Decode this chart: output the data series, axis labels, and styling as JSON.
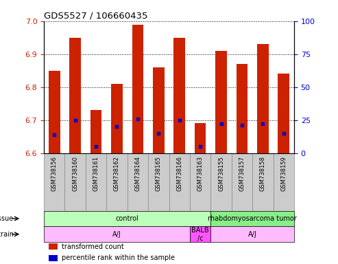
{
  "title": "GDS5527 / 106660435",
  "samples": [
    "GSM738156",
    "GSM738160",
    "GSM738161",
    "GSM738162",
    "GSM738164",
    "GSM738165",
    "GSM738166",
    "GSM738163",
    "GSM738155",
    "GSM738157",
    "GSM738158",
    "GSM738159"
  ],
  "bar_values": [
    6.85,
    6.95,
    6.73,
    6.81,
    6.99,
    6.86,
    6.95,
    6.69,
    6.91,
    6.87,
    6.93,
    6.84
  ],
  "percentile_values": [
    14,
    25,
    5,
    20,
    26,
    15,
    25,
    5,
    22,
    21,
    22,
    15
  ],
  "ylim_left": [
    6.6,
    7.0
  ],
  "ylim_right": [
    0,
    100
  ],
  "yticks_left": [
    6.6,
    6.7,
    6.8,
    6.9,
    7.0
  ],
  "yticks_right": [
    0,
    25,
    50,
    75,
    100
  ],
  "bar_color": "#cc2200",
  "bar_base": 6.6,
  "percentile_color": "#0000cc",
  "tissue_groups": [
    {
      "label": "control",
      "start": 0,
      "end": 7,
      "color": "#bbffbb"
    },
    {
      "label": "rhabdomyosarcoma tumor",
      "start": 8,
      "end": 11,
      "color": "#88ee88"
    }
  ],
  "strain_groups": [
    {
      "label": "A/J",
      "start": 0,
      "end": 6,
      "color": "#ffbbff"
    },
    {
      "label": "BALB\n/c",
      "start": 7,
      "end": 7,
      "color": "#ff55ff"
    },
    {
      "label": "A/J",
      "start": 8,
      "end": 11,
      "color": "#ffbbff"
    }
  ],
  "legend_entries": [
    {
      "color": "#cc2200",
      "label": "transformed count"
    },
    {
      "color": "#0000cc",
      "label": "percentile rank within the sample"
    }
  ],
  "left_axis_color": "#cc2200",
  "right_axis_color": "#0000cc",
  "bar_width": 0.55,
  "n_samples": 12,
  "xlabel_bg": "#cccccc",
  "xlabel_border": "#888888"
}
